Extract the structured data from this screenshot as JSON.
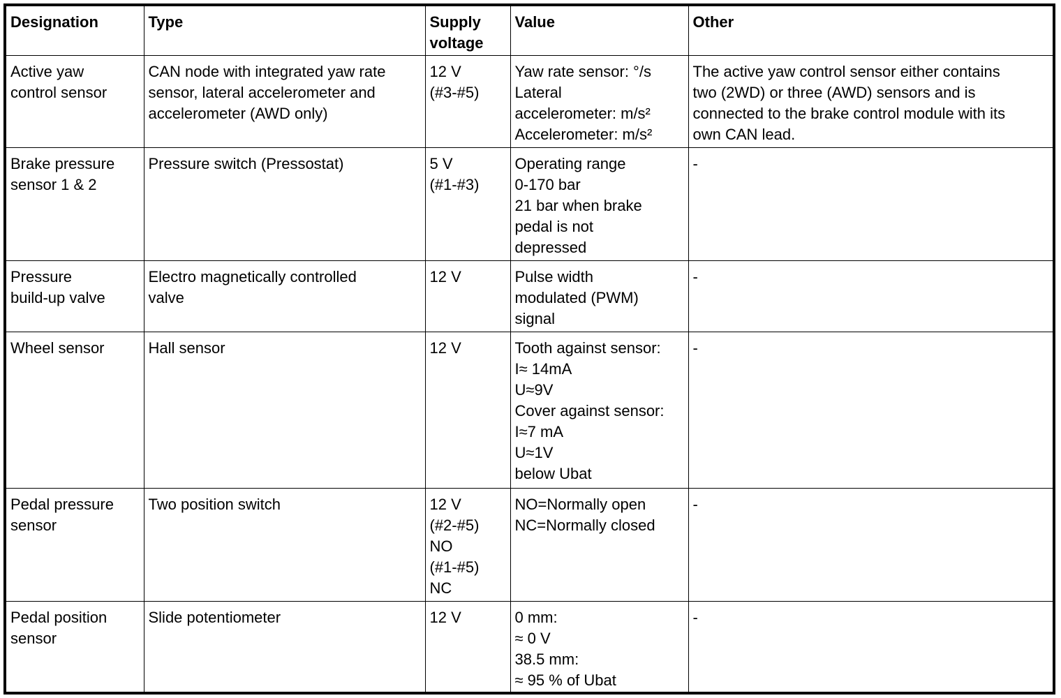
{
  "table": {
    "headers": [
      [
        "Designation"
      ],
      [
        "Type"
      ],
      [
        "Supply",
        "voltage"
      ],
      [
        "Value"
      ],
      [
        "Other"
      ]
    ],
    "rows": [
      {
        "cells": [
          [
            "Active yaw",
            "control sensor"
          ],
          [
            "CAN node with integrated yaw rate",
            "sensor, lateral accelerometer and",
            "accelerometer (AWD only)"
          ],
          [
            "12 V",
            "(#3-#5)"
          ],
          [
            "Yaw rate sensor: °/s",
            "Lateral",
            "accelerometer: m/s²",
            "Accelerometer: m/s²"
          ],
          [
            "The active yaw control sensor either contains",
            "two (2WD) or three (AWD) sensors and is",
            "connected to the brake control module with its",
            "own CAN lead."
          ]
        ]
      },
      {
        "cells": [
          [
            "Brake pressure",
            "sensor 1 & 2"
          ],
          [
            "Pressure switch (Pressostat)"
          ],
          [
            "5 V",
            "(#1-#3)"
          ],
          [
            "Operating range",
            "0-170 bar",
            "21 bar when brake",
            "pedal is not",
            "depressed"
          ],
          [
            "-"
          ]
        ]
      },
      {
        "cells": [
          [
            "Pressure",
            "build-up valve"
          ],
          [
            "Electro magnetically controlled",
            "valve"
          ],
          [
            "12 V"
          ],
          [
            "Pulse width",
            "modulated (PWM)",
            "signal"
          ],
          [
            "-"
          ]
        ]
      },
      {
        "cells": [
          [
            "Wheel sensor"
          ],
          [
            "Hall sensor"
          ],
          [
            "12 V"
          ],
          [
            "Tooth against sensor:",
            "I≈ 14mA",
            "U≈9V",
            "Cover against sensor:",
            "I≈7 mA",
            "U≈1V",
            "below Ubat"
          ],
          [
            "-"
          ]
        ]
      },
      {
        "cells": [
          [
            "Pedal pressure",
            "sensor"
          ],
          [
            "Two position switch"
          ],
          [
            "12 V",
            "(#2-#5)",
            "NO",
            "(#1-#5)",
            "NC"
          ],
          [
            "NO=Normally open",
            "NC=Normally closed"
          ],
          [
            "-"
          ]
        ]
      },
      {
        "cells": [
          [
            "Pedal position",
            "sensor"
          ],
          [
            "Slide potentiometer"
          ],
          [
            "12 V"
          ],
          [
            "0 mm:",
            "≈ 0 V",
            "38.5 mm:",
            "≈ 95 % of Ubat"
          ],
          [
            "-"
          ]
        ]
      }
    ]
  }
}
